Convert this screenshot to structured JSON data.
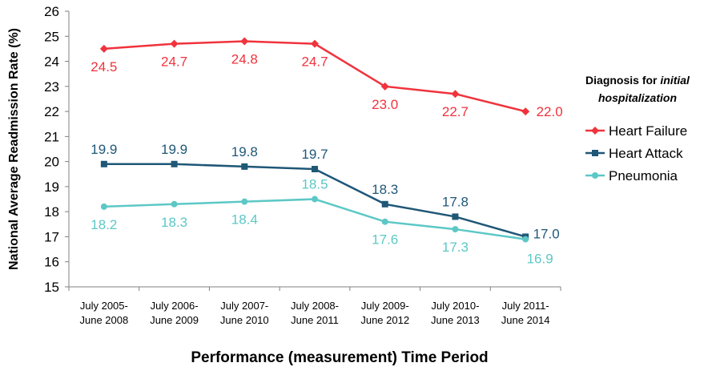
{
  "chart_data": {
    "type": "line",
    "categories": [
      [
        "July 2005-",
        "June 2008"
      ],
      [
        "July 2006-",
        "June 2009"
      ],
      [
        "July 2007-",
        "June 2010"
      ],
      [
        "July 2008-",
        "June 2011"
      ],
      [
        "July 2009-",
        "June 2012"
      ],
      [
        "July 2010-",
        "June 2013"
      ],
      [
        "July 2011-",
        "June 2014"
      ]
    ],
    "series": [
      {
        "name": "Heart Failure",
        "values": [
          24.5,
          24.7,
          24.8,
          24.7,
          23.0,
          22.7,
          22.0
        ],
        "color": "#f0333d",
        "marker": "diamond",
        "labels": [
          "24.5",
          "24.7",
          "24.8",
          "24.7",
          "23.0",
          "22.7",
          "22.0"
        ]
      },
      {
        "name": "Heart Attack",
        "values": [
          19.9,
          19.9,
          19.8,
          19.7,
          18.3,
          17.8,
          17.0
        ],
        "color": "#1f5777",
        "marker": "square",
        "labels": [
          "19.9",
          "19.9",
          "19.8",
          "19.7",
          "18.3",
          "17.8",
          "17.0"
        ]
      },
      {
        "name": "Pneumonia",
        "values": [
          18.2,
          18.3,
          18.4,
          18.5,
          17.6,
          17.3,
          16.9
        ],
        "color": "#5cc8c6",
        "marker": "circle",
        "labels": [
          "18.2",
          "18.3",
          "18.4",
          "18.5",
          "17.6",
          "17.3",
          "16.9"
        ]
      }
    ],
    "ylim": [
      15,
      26
    ],
    "yticks": [
      "15",
      "16",
      "17",
      "18",
      "19",
      "20",
      "21",
      "22",
      "23",
      "24",
      "25",
      "26"
    ],
    "ylabel": "National Average Readmission Rate (%)",
    "xlabel": "Performance (measurement) Time Period",
    "legend": {
      "title_line1_plain": "Diagnosis for ",
      "title_line1_italic": "initial",
      "title_line2_italic": "hospitalization",
      "position": "right"
    },
    "grid": false
  }
}
